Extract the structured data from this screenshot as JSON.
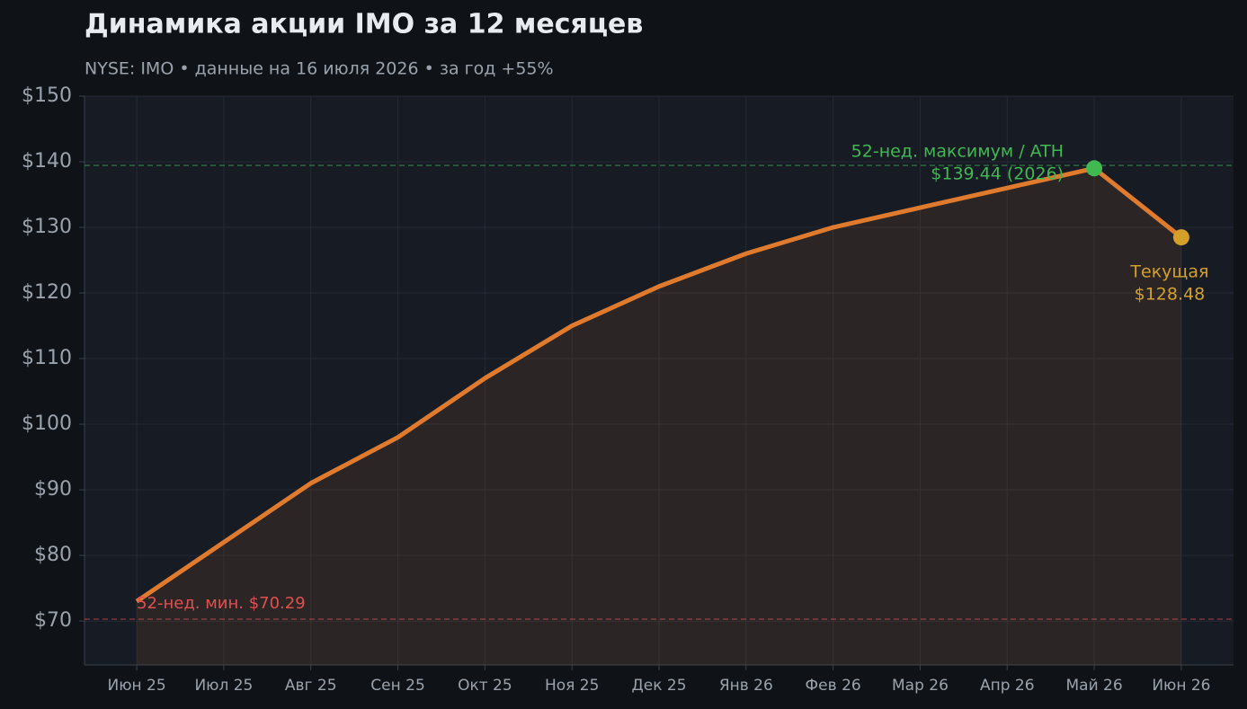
{
  "chart_data": {
    "type": "line",
    "title": "Динамика акции IMO за 12 месяцев",
    "subtitle": "NYSE: IMO  •  данные на 16 июля 2026  •  за год +55%",
    "categories": [
      "Июн 25",
      "Июл 25",
      "Авг 25",
      "Сен 25",
      "Окт 25",
      "Ноя 25",
      "Дек 25",
      "Янв 26",
      "Фев 26",
      "Мар 26",
      "Апр 26",
      "Май 26",
      "Июн 26"
    ],
    "series": [
      {
        "name": "IMO",
        "color": "#e07b2e",
        "values": [
          73,
          82,
          91,
          98,
          107,
          115,
          121,
          126,
          130,
          133,
          136,
          139,
          128.48
        ]
      }
    ],
    "ylim": [
      63.3,
      150
    ],
    "yticks": [
      {
        "value": 70,
        "label": "$70"
      },
      {
        "value": 80,
        "label": "$80"
      },
      {
        "value": 90,
        "label": "$90"
      },
      {
        "value": 100,
        "label": "$100"
      },
      {
        "value": 110,
        "label": "$110"
      },
      {
        "value": 120,
        "label": "$120"
      },
      {
        "value": 130,
        "label": "$130"
      },
      {
        "value": 140,
        "label": "$140"
      },
      {
        "value": 150,
        "label": "$150"
      }
    ],
    "grid": true,
    "reference_lines": [
      {
        "value": 139.44,
        "color": "#3fb950",
        "label": "52-нед. максимум / ATH",
        "sublabel": "$139.44 (2026)"
      },
      {
        "value": 70.29,
        "color": "#e05050",
        "label": "52-нед. мин. $70.29"
      }
    ],
    "current": {
      "label": "Текущая",
      "value_label": "$128.48",
      "color": "#d4a02a"
    }
  }
}
